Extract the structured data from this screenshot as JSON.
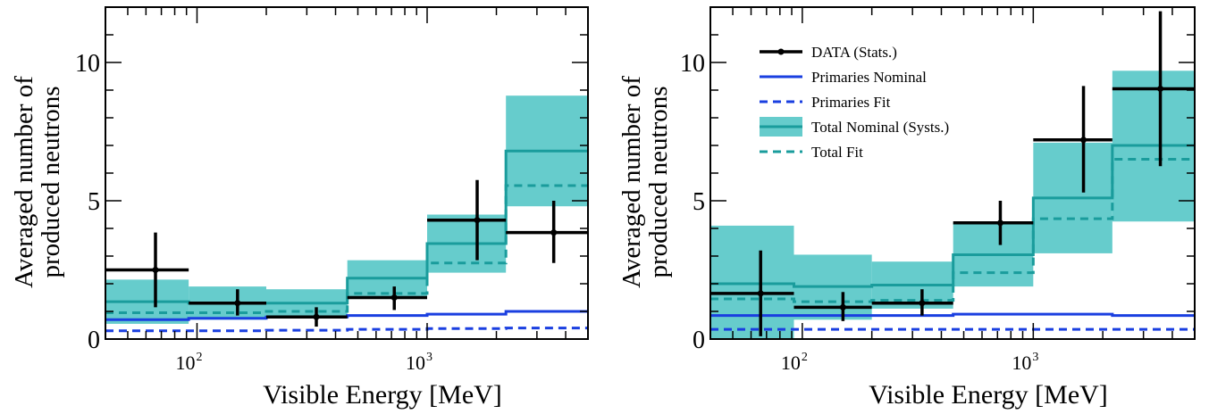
{
  "colors": {
    "data": "#000000",
    "primaries": "#1a3fe0",
    "total_line": "#1a9c9c",
    "band": "#66cccc"
  },
  "chart_data": [
    {
      "type": "histogram",
      "xlabel": "Visible Energy [MeV]",
      "ylabel_lines": [
        "Averaged number of",
        "produced neutrons"
      ],
      "xscale": "log",
      "xlim": [
        40,
        5000
      ],
      "ylim": [
        0,
        12
      ],
      "ytick_values": [
        0,
        5,
        10
      ],
      "ytick_labels": [
        "0",
        "5",
        "10"
      ],
      "xticks": [
        {
          "value": 100,
          "base": "10",
          "exp": "2"
        },
        {
          "value": 1000,
          "base": "10",
          "exp": "3"
        }
      ],
      "bin_edges": [
        40,
        92,
        200,
        450,
        1000,
        2200,
        5000
      ],
      "data": {
        "name": "DATA (Stats.)",
        "x": [
          66,
          150,
          330,
          720,
          1650,
          3550
        ],
        "y": [
          2.5,
          1.3,
          0.8,
          1.5,
          4.3,
          3.85
        ],
        "err_low": [
          1.35,
          0.45,
          0.35,
          0.45,
          1.45,
          1.1
        ],
        "err_high": [
          1.35,
          0.5,
          0.35,
          0.4,
          1.45,
          1.15
        ]
      },
      "primaries_nominal": [
        0.7,
        0.75,
        0.8,
        0.85,
        0.9,
        1.0
      ],
      "primaries_fit": [
        0.3,
        0.3,
        0.32,
        0.35,
        0.38,
        0.4
      ],
      "total_nominal": [
        1.35,
        1.3,
        1.3,
        2.2,
        3.45,
        6.8
      ],
      "total_band_low": [
        0.55,
        0.7,
        0.8,
        1.45,
        2.4,
        4.8
      ],
      "total_band_high": [
        2.15,
        1.9,
        1.8,
        2.85,
        4.5,
        8.8
      ],
      "total_fit": [
        0.95,
        0.95,
        1.0,
        1.65,
        2.75,
        5.55
      ]
    },
    {
      "type": "histogram",
      "xlabel": "Visible Energy [MeV]",
      "ylabel_lines": [
        "Averaged number of",
        "produced neutrons"
      ],
      "xscale": "log",
      "xlim": [
        40,
        5000
      ],
      "ylim": [
        0,
        12
      ],
      "ytick_values": [
        0,
        5,
        10
      ],
      "ytick_labels": [
        "0",
        "5",
        "10"
      ],
      "xticks": [
        {
          "value": 100,
          "base": "10",
          "exp": "2"
        },
        {
          "value": 1000,
          "base": "10",
          "exp": "3"
        }
      ],
      "bin_edges": [
        40,
        92,
        200,
        450,
        1000,
        2200,
        5000
      ],
      "data": {
        "name": "DATA (Stats.)",
        "x": [
          66,
          150,
          330,
          720,
          1650,
          3550
        ],
        "y": [
          1.65,
          1.15,
          1.3,
          4.2,
          7.2,
          9.05
        ],
        "err_low": [
          1.55,
          0.5,
          0.45,
          0.8,
          1.9,
          2.8
        ],
        "err_high": [
          1.55,
          0.55,
          0.5,
          0.8,
          1.95,
          2.8
        ]
      },
      "primaries_nominal": [
        0.85,
        0.85,
        0.85,
        0.9,
        0.9,
        0.85
      ],
      "primaries_fit": [
        0.35,
        0.35,
        0.35,
        0.35,
        0.35,
        0.35
      ],
      "total_nominal": [
        2.0,
        1.9,
        1.95,
        3.05,
        5.1,
        7.0
      ],
      "total_band_low": [
        0,
        0.7,
        1.1,
        1.9,
        3.1,
        4.25
      ],
      "total_band_high": [
        4.1,
        3.05,
        2.8,
        4.2,
        7.1,
        9.7
      ],
      "total_fit": [
        1.45,
        1.35,
        1.4,
        2.4,
        4.35,
        6.5
      ],
      "legend": {
        "placement": "top-left",
        "entries": [
          {
            "key": "data",
            "label": "DATA (Stats.)"
          },
          {
            "key": "primaries_nominal",
            "label": "Primaries Nominal"
          },
          {
            "key": "primaries_fit",
            "label": "Primaries Fit"
          },
          {
            "key": "total_nominal",
            "label": "Total Nominal (Systs.)"
          },
          {
            "key": "total_fit",
            "label": "Total Fit"
          }
        ]
      }
    }
  ]
}
